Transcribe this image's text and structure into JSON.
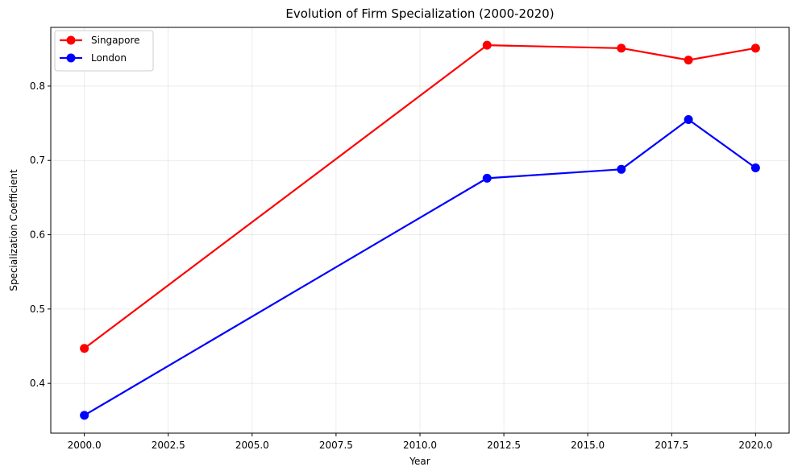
{
  "chart_data": {
    "type": "line",
    "title": "Evolution of Firm Specialization (2000-2020)",
    "xlabel": "Year",
    "ylabel": "Specialization Coefficient",
    "x": [
      2000,
      2012,
      2016,
      2018,
      2020
    ],
    "xlim": [
      1999,
      2021
    ],
    "ylim": [
      0.333,
      0.879
    ],
    "xticks": [
      2000.0,
      2002.5,
      2005.0,
      2007.5,
      2010.0,
      2012.5,
      2015.0,
      2017.5,
      2020.0
    ],
    "xtick_labels": [
      "2000.0",
      "2002.5",
      "2005.0",
      "2007.5",
      "2010.0",
      "2012.5",
      "2015.0",
      "2017.5",
      "2020.0"
    ],
    "yticks": [
      0.4,
      0.5,
      0.6,
      0.7,
      0.8
    ],
    "ytick_labels": [
      "0.4",
      "0.5",
      "0.6",
      "0.7",
      "0.8"
    ],
    "grid": true,
    "legend_position": "upper-left",
    "series": [
      {
        "name": "Singapore",
        "color": "#ff0000",
        "marker": "circle",
        "values": [
          0.447,
          0.855,
          0.851,
          0.835,
          0.851
        ]
      },
      {
        "name": "London",
        "color": "#0000ff",
        "marker": "circle",
        "values": [
          0.357,
          0.676,
          0.688,
          0.755,
          0.69
        ]
      }
    ]
  }
}
